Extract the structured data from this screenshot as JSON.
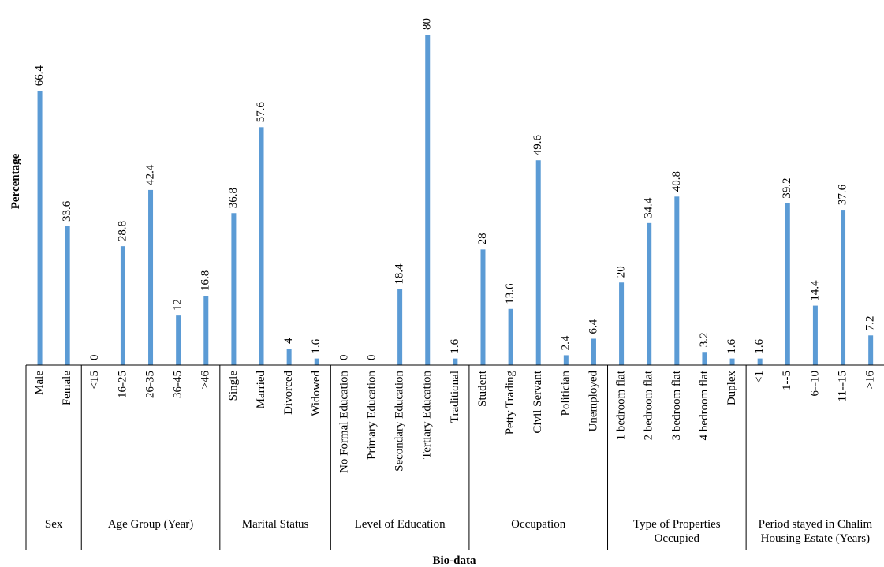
{
  "chart_data": {
    "type": "bar",
    "ylabel": "Percentage",
    "xlabel": "Bio-data",
    "ylim": [
      0,
      80
    ],
    "grid": false,
    "bar_color": "#5b9bd5",
    "groups": [
      {
        "name": "Sex",
        "name_lines": [
          "Sex"
        ],
        "categories": [
          "Male",
          "Female"
        ],
        "values": [
          66.4,
          33.6
        ],
        "value_labels": [
          "66.4",
          "33.6"
        ]
      },
      {
        "name": "Age Group (Year)",
        "name_lines": [
          "Age Group (Year)"
        ],
        "categories": [
          "<15",
          "16-25",
          "26-35",
          "36-45",
          ">46"
        ],
        "values": [
          0,
          28.8,
          42.4,
          12,
          16.8
        ],
        "value_labels": [
          "0",
          "28.8",
          "42.4",
          "12",
          "16.8"
        ]
      },
      {
        "name": "Marital Status",
        "name_lines": [
          "Marital Status"
        ],
        "categories": [
          "Single",
          "Married",
          "Divorced",
          "Widowed"
        ],
        "values": [
          36.8,
          57.6,
          4,
          1.6
        ],
        "value_labels": [
          "36.8",
          "57.6",
          "4",
          "1.6"
        ]
      },
      {
        "name": "Level of Education",
        "name_lines": [
          "Level of Education"
        ],
        "categories": [
          "No Formal Education",
          "Primary Education",
          "Secondary Education",
          "Tertiary Education",
          "Traditional"
        ],
        "values": [
          0,
          0,
          18.4,
          80,
          1.6
        ],
        "value_labels": [
          "0",
          "0",
          "18.4",
          "80",
          "1.6"
        ]
      },
      {
        "name": "Occupation",
        "name_lines": [
          "Occupation"
        ],
        "categories": [
          "Student",
          "Petty Trading",
          "Civil Servant",
          "Politician",
          "Unemployed"
        ],
        "values": [
          28,
          13.6,
          49.6,
          2.4,
          6.4
        ],
        "value_labels": [
          "28",
          "13.6",
          "49.6",
          "2.4",
          "6.4"
        ]
      },
      {
        "name": "Type of Properties Occupied",
        "name_lines": [
          "Type of Properties",
          "Occupied"
        ],
        "categories": [
          "1 bedroom flat",
          "2 bedroom flat",
          "3 bedroom flat",
          "4 bedroom flat",
          "Duplex"
        ],
        "values": [
          20,
          34.4,
          40.8,
          3.2,
          1.6
        ],
        "value_labels": [
          "20",
          "34.4",
          "40.8",
          "3.2",
          "1.6"
        ]
      },
      {
        "name": "Period stayed in Chalim Housing Estate (Years)",
        "name_lines": [
          "Period stayed in Chalim",
          "Housing Estate (Years)"
        ],
        "categories": [
          "<1",
          "1--5",
          "6--10",
          "11--15",
          ">16"
        ],
        "values": [
          1.6,
          39.2,
          14.4,
          37.6,
          7.2
        ],
        "value_labels": [
          "1.6",
          "39.2",
          "14.4",
          "37.6",
          "7.2"
        ]
      }
    ]
  }
}
